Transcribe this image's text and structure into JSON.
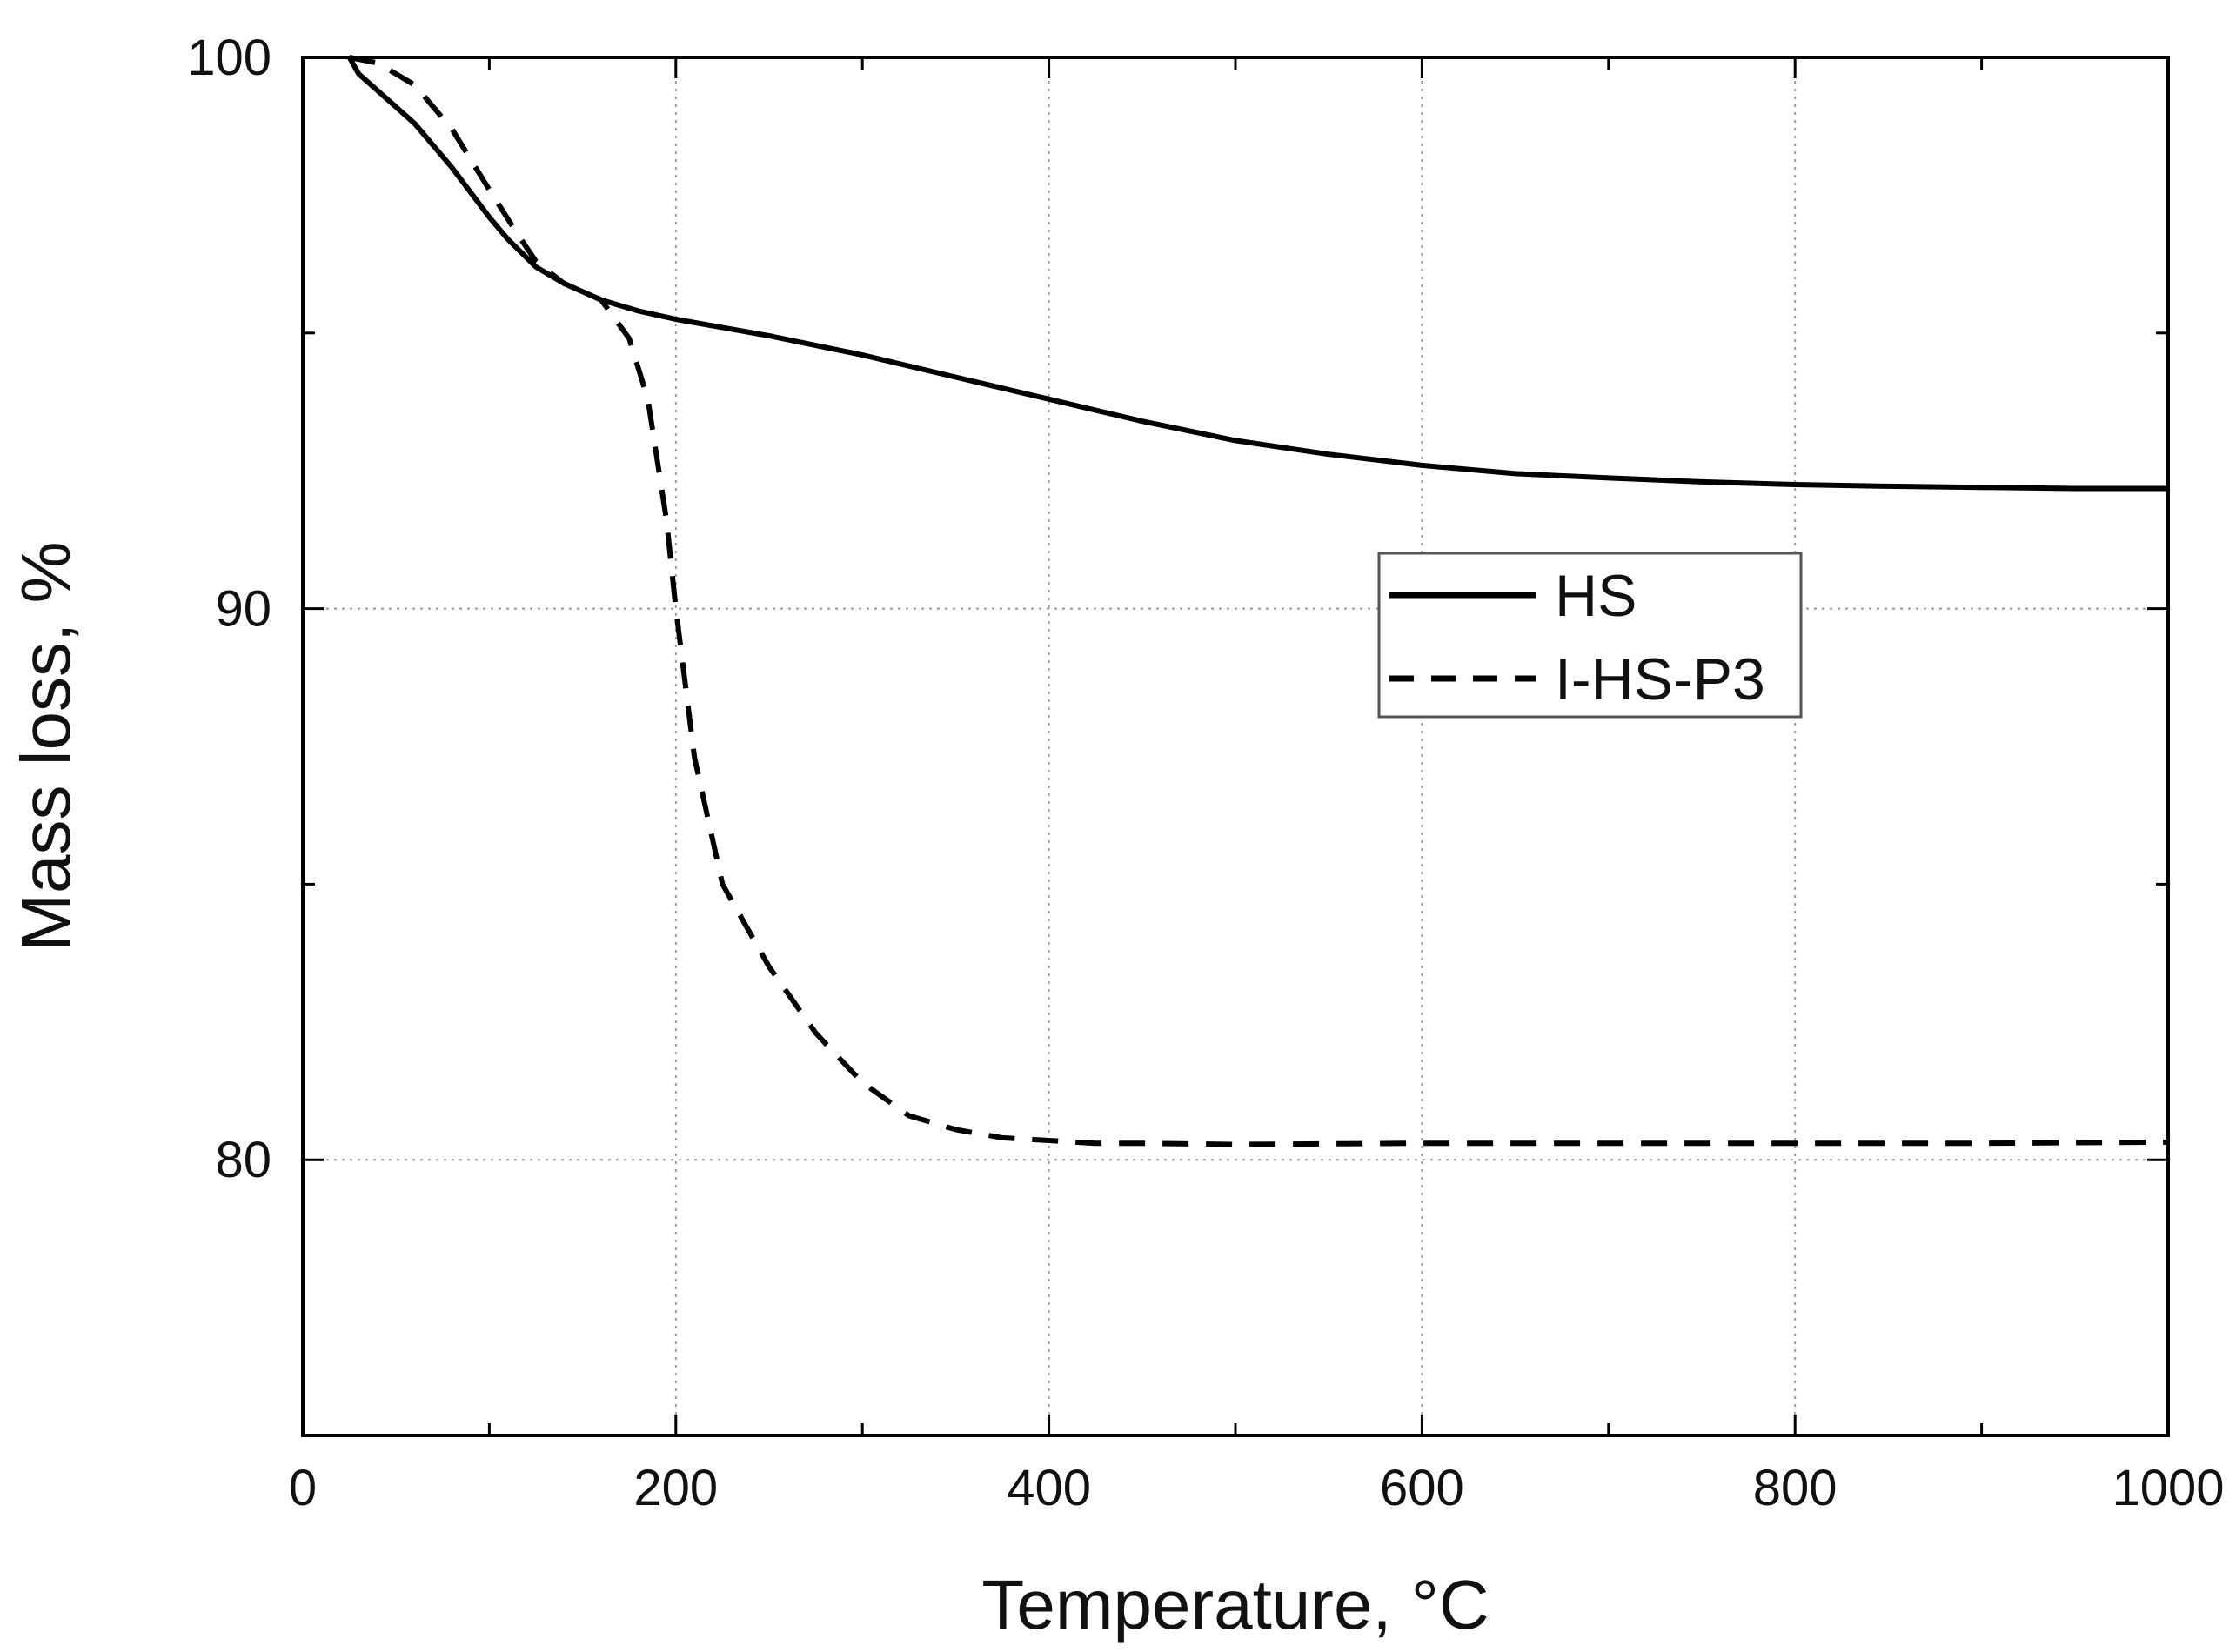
{
  "chart_data": {
    "type": "line",
    "title": "",
    "xlabel": "Temperature, °C",
    "ylabel": "Mass loss, %",
    "xlim": [
      0,
      1000
    ],
    "ylim": [
      75,
      100
    ],
    "x_major_ticks": [
      0,
      200,
      400,
      600,
      800,
      1000
    ],
    "x_minor_ticks": [
      100,
      300,
      500,
      700,
      900
    ],
    "y_major_ticks": [
      80,
      90,
      100
    ],
    "y_minor_ticks": [
      85,
      95
    ],
    "x_tick_labels": [
      "0",
      "200",
      "400",
      "600",
      "800",
      "1000"
    ],
    "y_tick_labels": [
      "80",
      "90",
      "100"
    ],
    "grid": true,
    "legend_position": "center-right",
    "series": [
      {
        "name": "HS",
        "line_style": "solid",
        "color": "#000000",
        "x": [
          25,
          30,
          40,
          60,
          80,
          100,
          110,
          125,
          140,
          160,
          180,
          200,
          250,
          300,
          350,
          400,
          450,
          500,
          550,
          600,
          650,
          700,
          750,
          800,
          850,
          900,
          950,
          1000
        ],
        "y": [
          100,
          99.7,
          99.4,
          98.8,
          98.0,
          97.1,
          96.7,
          96.2,
          95.9,
          95.6,
          95.4,
          95.25,
          94.95,
          94.6,
          94.2,
          93.8,
          93.4,
          93.05,
          92.8,
          92.6,
          92.45,
          92.37,
          92.3,
          92.25,
          92.22,
          92.2,
          92.18,
          92.18
        ]
      },
      {
        "name": "I-HS-P3",
        "line_style": "dashed",
        "color": "#000000",
        "x": [
          25,
          40,
          60,
          80,
          100,
          115,
          125,
          140,
          160,
          175,
          185,
          195,
          200,
          210,
          225,
          250,
          275,
          300,
          325,
          350,
          375,
          400,
          425,
          450,
          500,
          600,
          700,
          800,
          900,
          1000
        ],
        "y": [
          100,
          99.9,
          99.5,
          98.7,
          97.6,
          96.8,
          96.3,
          95.9,
          95.6,
          94.9,
          93.8,
          91.6,
          90.0,
          87.3,
          85.0,
          83.5,
          82.3,
          81.4,
          80.8,
          80.55,
          80.4,
          80.35,
          80.3,
          80.3,
          80.28,
          80.3,
          80.3,
          80.3,
          80.3,
          80.32
        ]
      }
    ]
  }
}
